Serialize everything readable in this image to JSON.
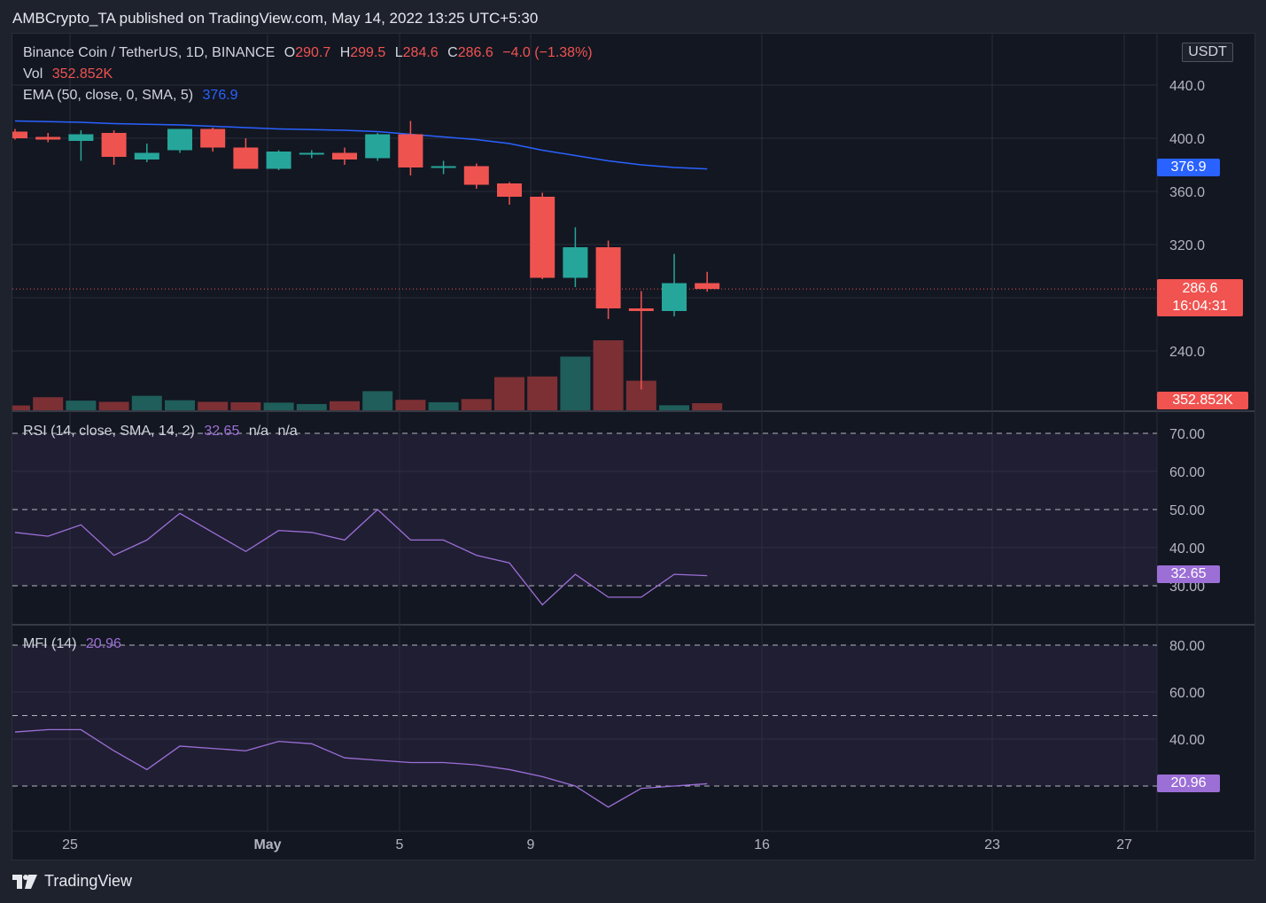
{
  "header": {
    "attribution": "AMBCrypto_TA published on TradingView.com, May 14, 2022 13:25 UTC+5:30"
  },
  "footer": {
    "brand": "TradingView"
  },
  "currency_badge": "USDT",
  "legend": {
    "symbol": "Binance Coin / TetherUS, 1D, BINANCE",
    "open_label": "O",
    "open": "290.7",
    "high_label": "H",
    "high": "299.5",
    "low_label": "L",
    "low": "284.6",
    "close_label": "C",
    "close": "286.6",
    "change": "−4.0 (−1.38%)",
    "vol_label": "Vol",
    "vol": "352.852K",
    "ema_label": "EMA (50, close, 0, SMA, 5)",
    "ema": "376.9",
    "rsi_label": "RSI (14, close, SMA, 14, 2)",
    "rsi": "32.65",
    "rsi_na1": "n/a",
    "rsi_na2": "n/a",
    "mfi_label": "MFI (14)",
    "mfi": "20.96"
  },
  "tags": {
    "ema": "376.9",
    "price": "286.6",
    "countdown": "16:04:31",
    "volume": "352.852K",
    "rsi": "32.65",
    "mfi": "20.96"
  },
  "colors": {
    "up": "#26a69a",
    "down": "#ef5350",
    "ema": "#2962ff",
    "rsi": "#9c6fd6",
    "bg": "#131722",
    "grid": "#2a2e39"
  },
  "chart_data": {
    "type": "candlestick",
    "x_labels": [
      "25",
      "May",
      "5",
      "9",
      "16",
      "23",
      "27"
    ],
    "price_axis": [
      "440.0",
      "400.0",
      "360.0",
      "320.0",
      "240.0"
    ],
    "rsi_axis": [
      "70.00",
      "60.00",
      "50.00",
      "40.00",
      "30.00"
    ],
    "mfi_axis": [
      "80.00",
      "60.00",
      "40.00"
    ],
    "candles": [
      {
        "o": 405,
        "h": 407,
        "l": 399,
        "c": 400
      },
      {
        "o": 401,
        "h": 404,
        "l": 397,
        "c": 399
      },
      {
        "o": 398,
        "h": 406,
        "l": 383,
        "c": 403
      },
      {
        "o": 404,
        "h": 406,
        "l": 380,
        "c": 386
      },
      {
        "o": 384,
        "h": 396,
        "l": 382,
        "c": 389
      },
      {
        "o": 391,
        "h": 406,
        "l": 389,
        "c": 407
      },
      {
        "o": 407,
        "h": 408,
        "l": 390,
        "c": 393
      },
      {
        "o": 393,
        "h": 400,
        "l": 377,
        "c": 377
      },
      {
        "o": 377,
        "h": 391,
        "l": 376,
        "c": 390
      },
      {
        "o": 389,
        "h": 391,
        "l": 385,
        "c": 389
      },
      {
        "o": 389,
        "h": 393,
        "l": 380,
        "c": 384
      },
      {
        "o": 385,
        "h": 404,
        "l": 383,
        "c": 403
      },
      {
        "o": 403,
        "h": 413,
        "l": 372,
        "c": 378
      },
      {
        "o": 379,
        "h": 383,
        "l": 373,
        "c": 379
      },
      {
        "o": 379,
        "h": 381,
        "l": 362,
        "c": 365
      },
      {
        "o": 366,
        "h": 367,
        "l": 350,
        "c": 356
      },
      {
        "o": 356,
        "h": 359,
        "l": 294,
        "c": 295
      },
      {
        "o": 295,
        "h": 333,
        "l": 288,
        "c": 318
      },
      {
        "o": 318,
        "h": 323,
        "l": 264,
        "c": 272
      },
      {
        "o": 272,
        "h": 285,
        "l": 211,
        "c": 270
      },
      {
        "o": 270,
        "h": 313,
        "l": 266,
        "c": 291
      },
      {
        "o": 291,
        "h": 299.5,
        "l": 284.6,
        "c": 286.6
      }
    ],
    "volume_k": [
      240,
      650,
      480,
      420,
      720,
      500,
      420,
      400,
      380,
      310,
      450,
      950,
      520,
      400,
      560,
      1650,
      1680,
      2670,
      3480,
      1470,
      250,
      353
    ],
    "ema": [
      413,
      412.5,
      412,
      411,
      410.5,
      410,
      409,
      408,
      407,
      406.5,
      406,
      405,
      403,
      401,
      399,
      396,
      391,
      387,
      383,
      380,
      378,
      376.9
    ],
    "rsi": [
      44,
      43,
      46,
      38,
      42,
      49,
      44,
      39,
      44.5,
      44,
      42,
      50,
      42,
      42,
      38,
      36,
      25,
      33,
      27,
      27,
      33,
      32.65
    ],
    "mfi": [
      43,
      44,
      44,
      35,
      27,
      37,
      36,
      35,
      39,
      38,
      32,
      31,
      30,
      30,
      29,
      27,
      24,
      20,
      11,
      19,
      20,
      20.96
    ],
    "rsi_levels": [
      70,
      50,
      30
    ],
    "mfi_levels": [
      80,
      50,
      20
    ]
  }
}
